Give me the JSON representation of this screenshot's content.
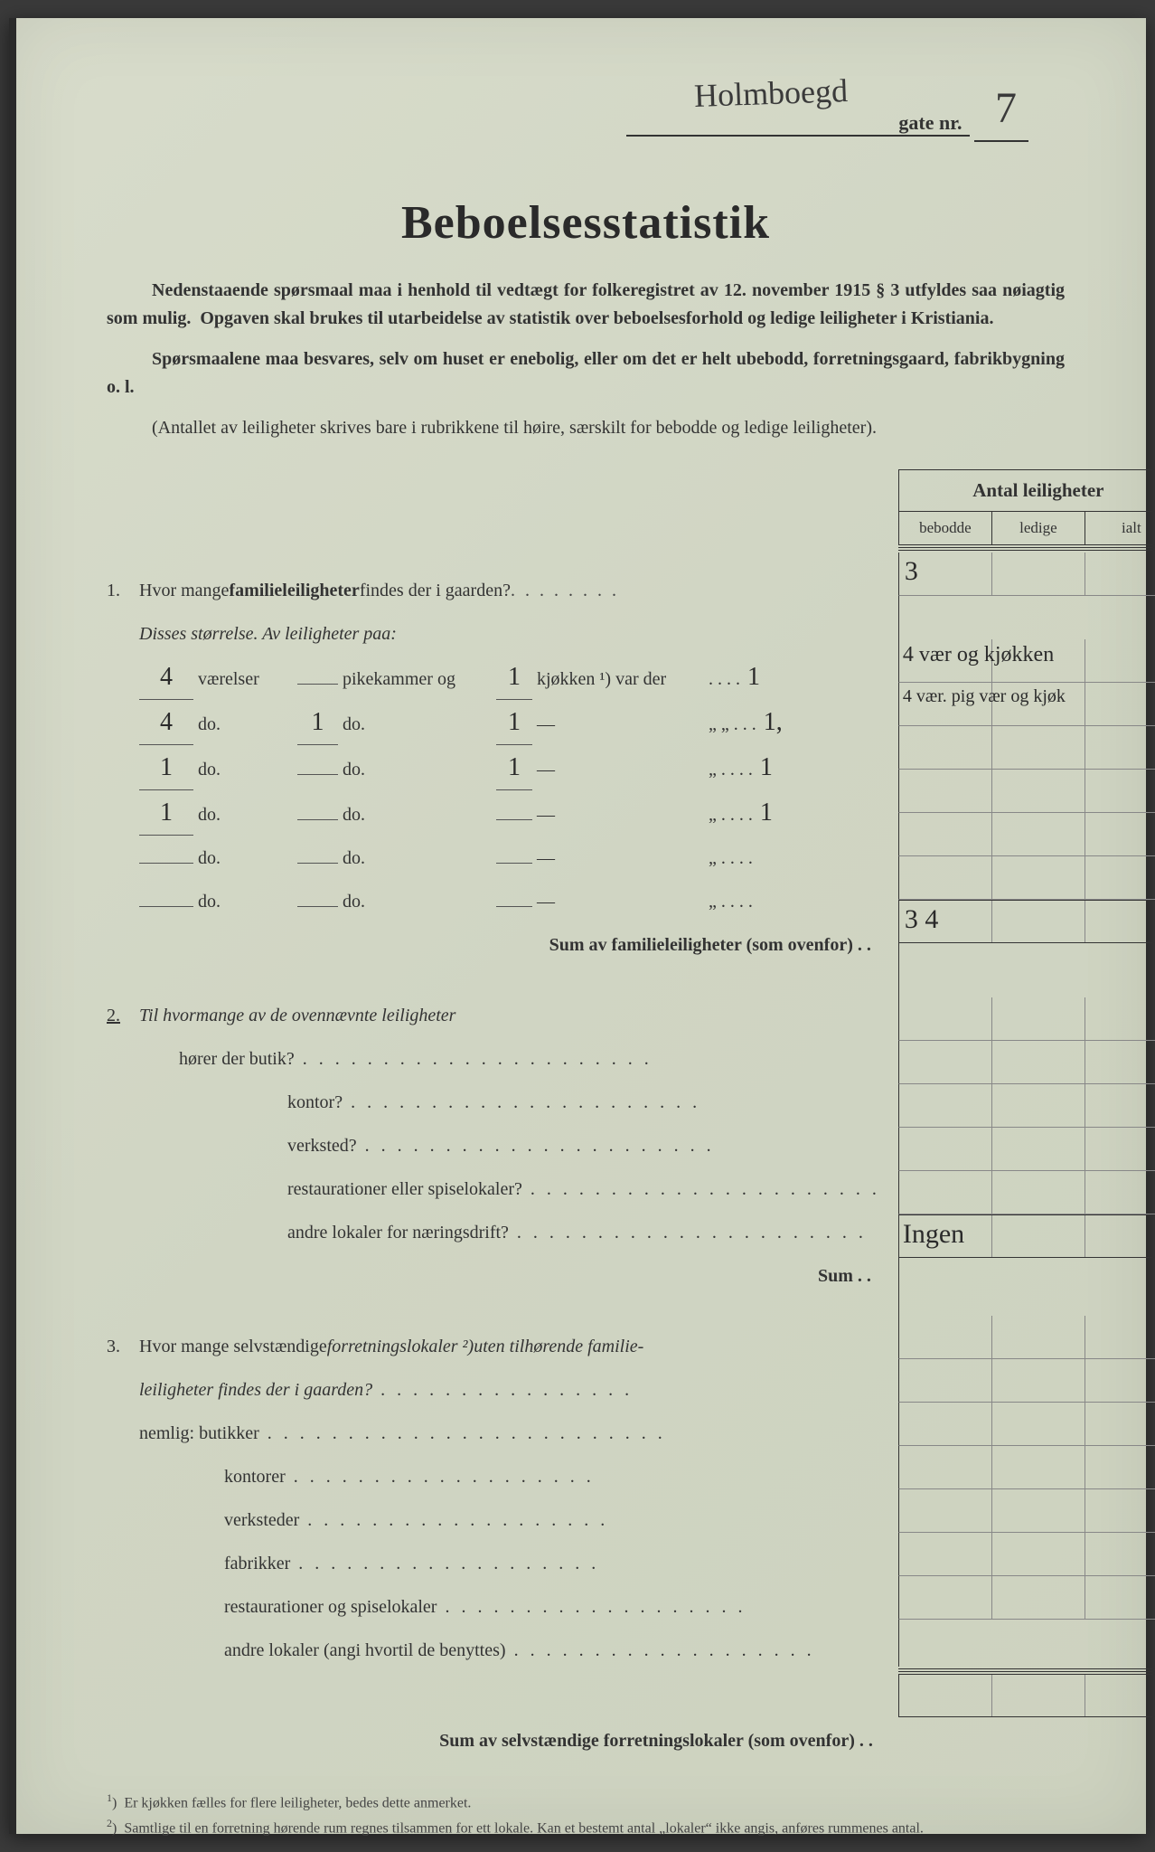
{
  "header": {
    "street_script": "Holmboegd",
    "gate_label": "gate nr.",
    "gate_nr": "7"
  },
  "title": "Beboelsesstatistik",
  "intro": {
    "p1a": "Nedenstaaende spørsmaal maa i henhold til vedtægt for folkeregistret av 12. november 1915 § 3 utfyldes saa nøiagtig som mulig.",
    "p1b": "Opgaven skal brukes til utarbeidelse av statistik over beboelsesforhold og ledige leiligheter i Kristiania.",
    "p2": "Spørsmaalene maa besvares, selv om huset er enebolig, eller om det er helt ubebodd, forretningsgaard, fabrikbygning o. l.",
    "p3": "(Antallet av leiligheter skrives bare i rubrikkene til høire, særskilt for bebodde og ledige leiligheter)."
  },
  "table_header": {
    "title": "Antal leiligheter",
    "cols": [
      "bebodde",
      "ledige",
      "ialt"
    ]
  },
  "q1": {
    "num": "1.",
    "text_a": "Hvor mange ",
    "text_b": "familieleiligheter",
    "text_c": " findes der i gaarden?",
    "subtitle": "Disses størrelse.  Av leiligheter paa:",
    "room_rows": [
      {
        "v": "4",
        "w1": "værelser",
        "pk": "",
        "w2": "pikekammer og",
        "kj": "1",
        "w3": "kjøkken ¹) var der",
        "tail": ". . . .",
        "hand_end": "1"
      },
      {
        "v": "4",
        "w1": "do.",
        "pk": "1",
        "w2": "do.",
        "kj": "1",
        "w3": "—",
        "tail": "„   „ . . .",
        "hand_end": "1,"
      },
      {
        "v": "1",
        "w1": "do.",
        "pk": "",
        "w2": "do.",
        "kj": "1",
        "w3": "—",
        "tail": "„   . . . .",
        "hand_end": "1"
      },
      {
        "v": "1",
        "w1": "do.",
        "pk": "",
        "w2": "do.",
        "kj": "",
        "w3": "—",
        "tail": "„   . . . .",
        "hand_end": "1"
      },
      {
        "v": "",
        "w1": "do.",
        "pk": "",
        "w2": "do.",
        "kj": "",
        "w3": "—",
        "tail": "„   . . . .",
        "hand_end": ""
      },
      {
        "v": "",
        "w1": "do.",
        "pk": "",
        "w2": "do.",
        "kj": "",
        "w3": "—",
        "tail": "„   . . . .",
        "hand_end": ""
      }
    ],
    "sum_label": "Sum av familieleiligheter (som ovenfor) . .",
    "ans": {
      "total": "3",
      "row1_span": "4 vær og kjøkken",
      "row2_span": "4 vær. pig vær og kjøk",
      "sum": "3 4"
    }
  },
  "q2": {
    "num": "2.",
    "text": "Til hvormange av de ovennævnte leiligheter",
    "items": [
      "hører der butik?",
      "kontor?",
      "verksted?",
      "restaurationer eller spiselokaler?",
      "andre lokaler for næringsdrift?"
    ],
    "sum_label": "Sum . .",
    "sum_ans": "Ingen"
  },
  "q3": {
    "num": "3.",
    "text_a": "Hvor mange selvstændige ",
    "text_b": "forretningslokaler ²)",
    "text_c": " uten tilhørende familie-",
    "text_d": "leiligheter findes der i gaarden?",
    "nemlig": "nemlig:",
    "items": [
      "butikker",
      "kontorer",
      "verksteder",
      "fabrikker",
      "restaurationer og spiselokaler",
      "andre lokaler (angi hvortil de benyttes)"
    ],
    "sum_label": "Sum av selvstændige forretningslokaler (som ovenfor) . ."
  },
  "footnotes": {
    "f1": "Er kjøkken fælles for flere leiligheter, bedes dette anmerket.",
    "f2": "Samtlige til en forretning hørende rum regnes tilsammen for ett lokale.  Kan et bestemt antal „lokaler“ ikke angis, anføres rummenes antal."
  },
  "colors": {
    "paper": "#d4d9c8",
    "ink": "#333333",
    "handwriting": "#2a2a2a"
  }
}
